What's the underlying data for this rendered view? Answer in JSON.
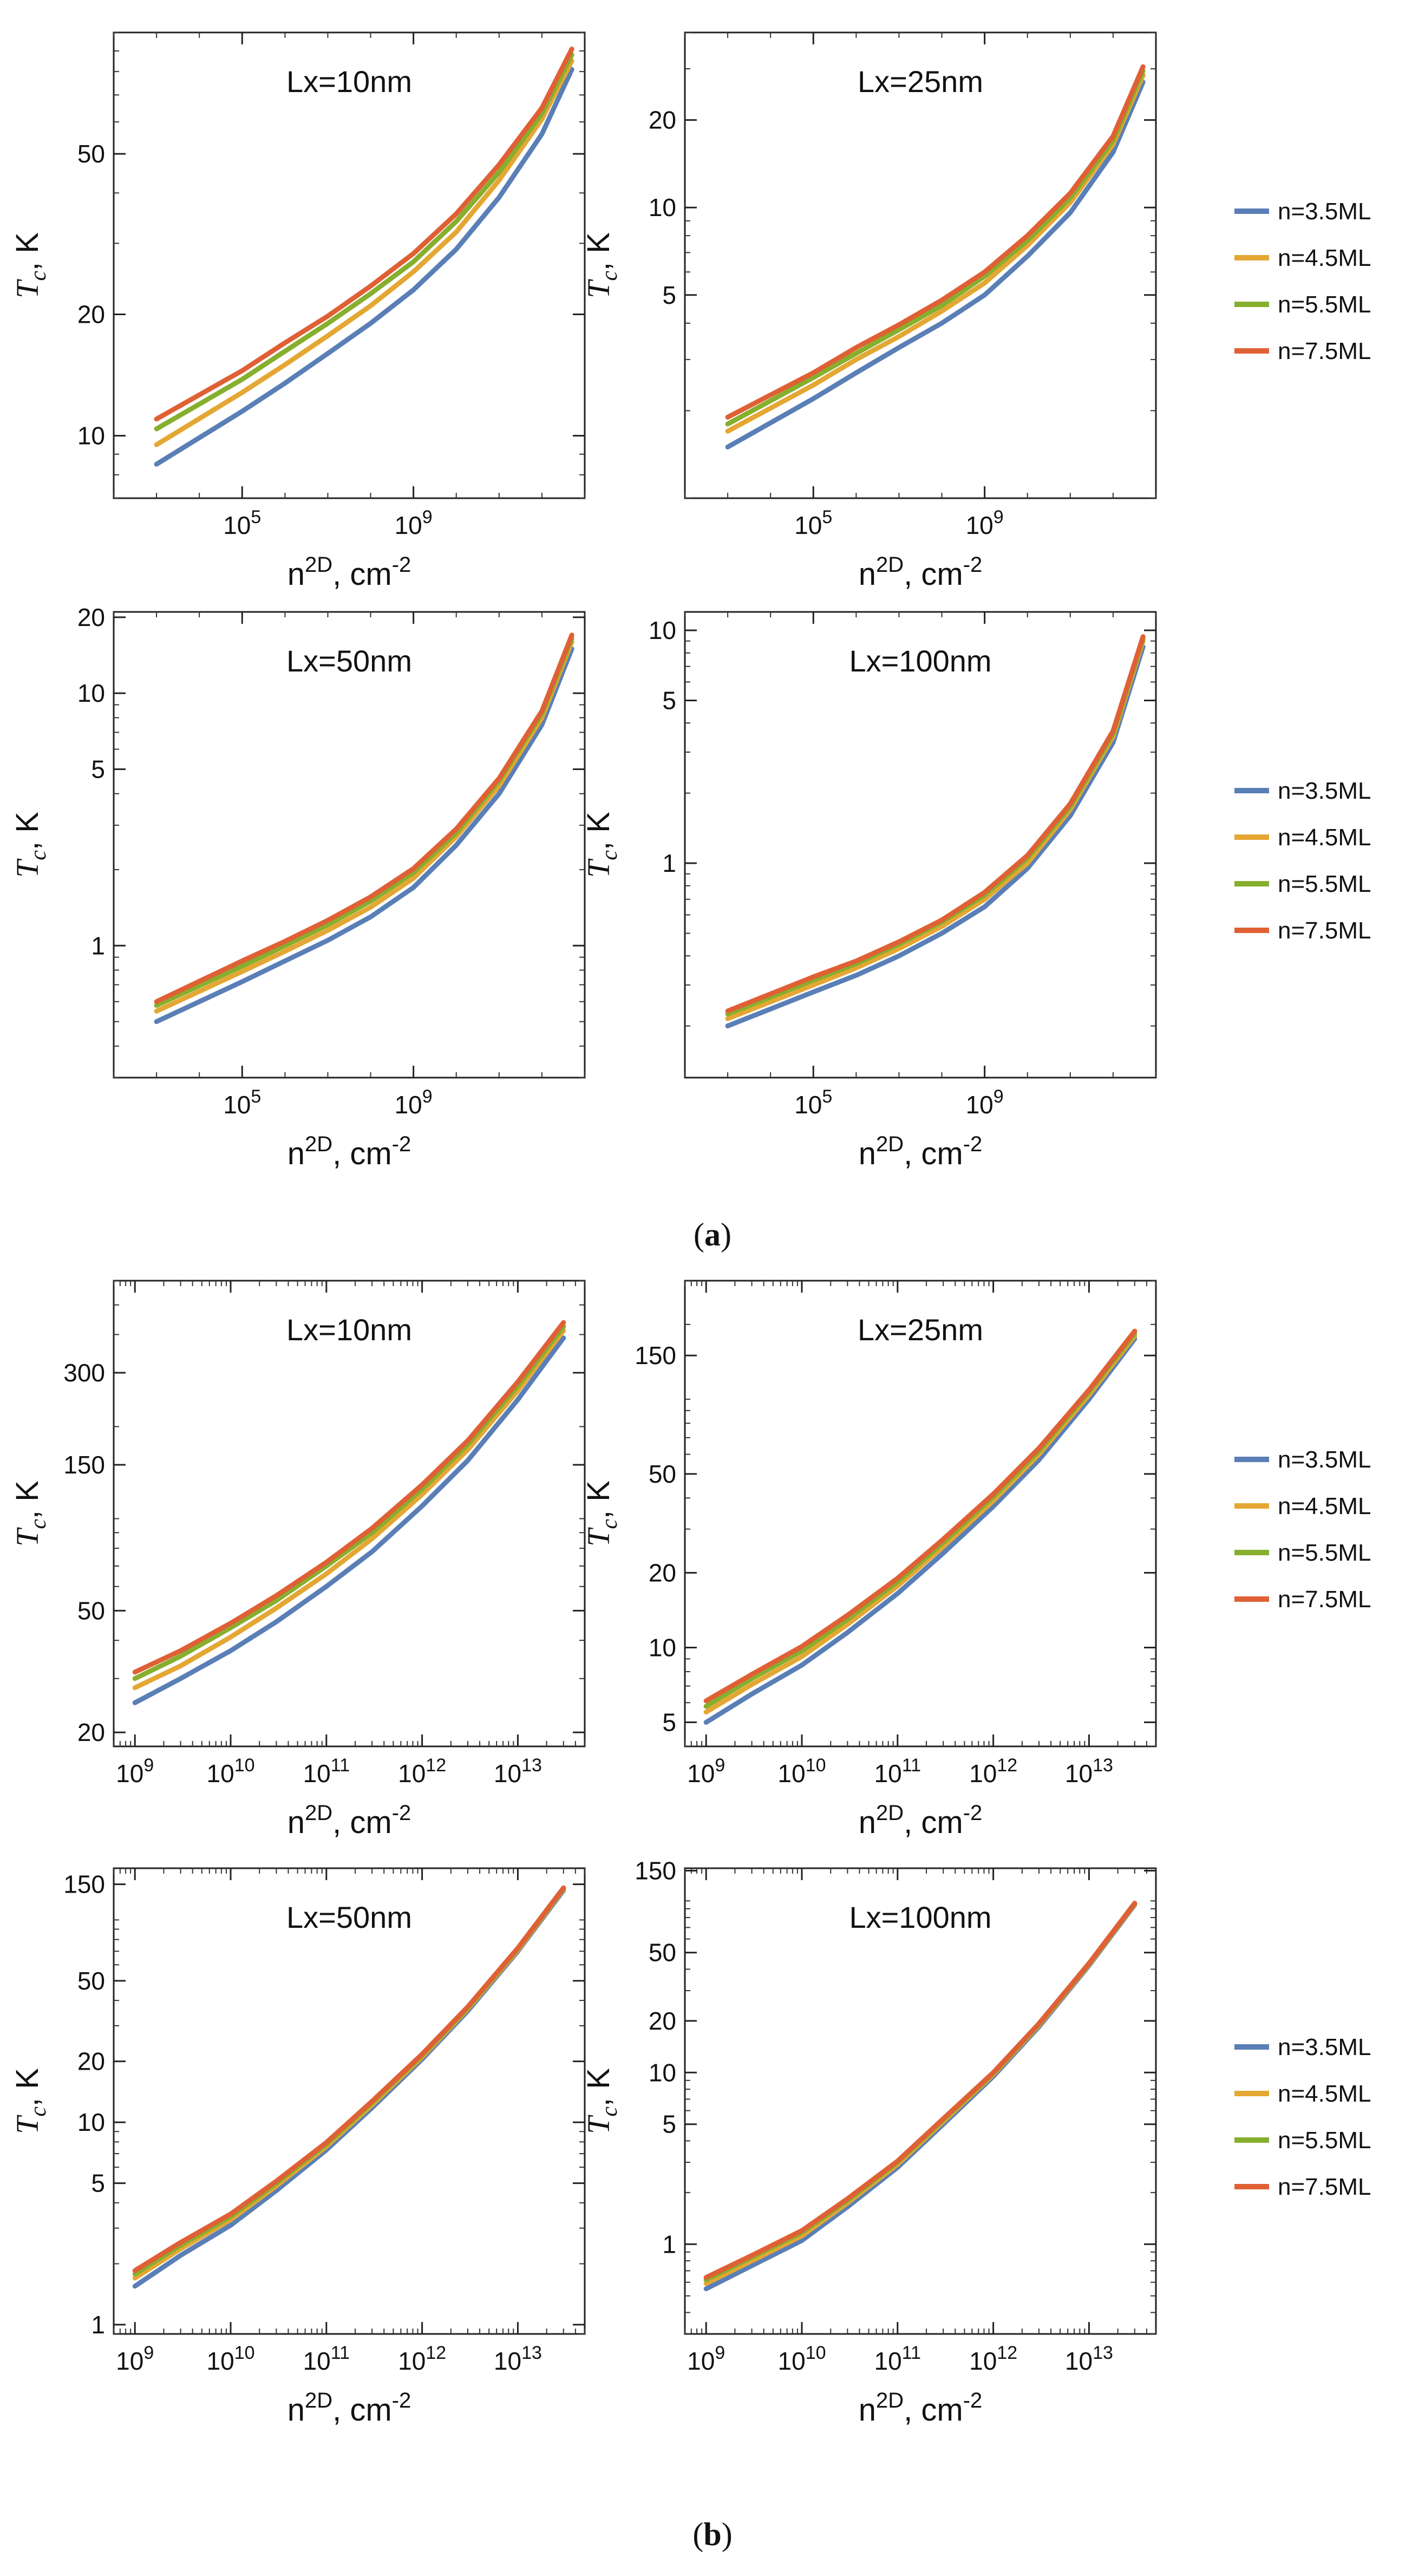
{
  "colors": {
    "n=3.5ML": "#5A7FB6",
    "n=4.5ML": "#E4A733",
    "n=5.5ML": "#86AF2D",
    "n=7.5ML": "#E06035"
  },
  "legend": [
    "n=3.5ML",
    "n=4.5ML",
    "n=5.5ML",
    "n=7.5ML"
  ],
  "captions": [
    "(a)",
    "(b)"
  ],
  "chart_data": [
    {
      "type": "line",
      "group": "a",
      "title": "Lx=10nm",
      "xlabel": "n^2D, cm^-2",
      "ylabel": "T_c, K",
      "xscale": "log",
      "yscale": "log",
      "xlim": [
        100,
        10000000000000.0
      ],
      "ylim": [
        7,
        100
      ],
      "xticks": [
        {
          "v": 100000.0,
          "label": "10^5"
        },
        {
          "v": 1000000000.0,
          "label": "10^9"
        }
      ],
      "yticks": [
        {
          "v": 10,
          "label": "10"
        },
        {
          "v": 20,
          "label": "20"
        },
        {
          "v": 50,
          "label": "50"
        }
      ],
      "x": [
        1000.0,
        100000.0,
        1000000.0,
        10000000.0,
        100000000.0,
        1000000000.0,
        10000000000.0,
        100000000000.0,
        1000000000000.0,
        5000000000000.0
      ],
      "series": [
        {
          "name": "n=3.5ML",
          "values": [
            8.5,
            11.5,
            13.5,
            16.0,
            19.0,
            23.0,
            29.0,
            39.0,
            56.0,
            81.0
          ]
        },
        {
          "name": "n=4.5ML",
          "values": [
            9.5,
            12.8,
            15.0,
            17.7,
            21.0,
            25.5,
            32.0,
            43.0,
            61.0,
            85.0
          ]
        },
        {
          "name": "n=5.5ML",
          "values": [
            10.4,
            13.8,
            16.2,
            19.0,
            22.5,
            27.0,
            34.0,
            45.0,
            63.0,
            88.0
          ]
        },
        {
          "name": "n=7.5ML",
          "values": [
            11.0,
            14.5,
            17.0,
            19.8,
            23.5,
            28.3,
            35.5,
            47.0,
            65.0,
            91.0
          ]
        }
      ]
    },
    {
      "type": "line",
      "group": "a",
      "title": "Lx=25nm",
      "xlabel": "n^2D, cm^-2",
      "ylabel": "T_c, K",
      "xscale": "log",
      "yscale": "log",
      "xlim": [
        100,
        10000000000000.0
      ],
      "ylim": [
        1,
        40
      ],
      "xticks": [
        {
          "v": 100000.0,
          "label": "10^5"
        },
        {
          "v": 1000000000.0,
          "label": "10^9"
        }
      ],
      "yticks": [
        {
          "v": 5,
          "label": "5"
        },
        {
          "v": 10,
          "label": "10"
        },
        {
          "v": 20,
          "label": "20"
        }
      ],
      "x": [
        1000.0,
        100000.0,
        1000000.0,
        10000000.0,
        100000000.0,
        1000000000.0,
        10000000000.0,
        100000000000.0,
        1000000000000.0,
        5000000000000.0
      ],
      "series": [
        {
          "name": "n=3.5ML",
          "values": [
            1.5,
            2.2,
            2.7,
            3.3,
            4.0,
            5.0,
            6.8,
            9.6,
            15.5,
            27.0
          ]
        },
        {
          "name": "n=4.5ML",
          "values": [
            1.7,
            2.45,
            3.0,
            3.6,
            4.4,
            5.5,
            7.4,
            10.4,
            16.5,
            28.5
          ]
        },
        {
          "name": "n=5.5ML",
          "values": [
            1.8,
            2.6,
            3.15,
            3.8,
            4.6,
            5.8,
            7.7,
            10.8,
            17.0,
            29.5
          ]
        },
        {
          "name": "n=7.5ML",
          "values": [
            1.9,
            2.7,
            3.3,
            3.95,
            4.8,
            6.0,
            8.0,
            11.2,
            17.6,
            30.5
          ]
        }
      ]
    },
    {
      "type": "line",
      "group": "a",
      "title": "Lx=50nm",
      "xlabel": "n^2D, cm^-2",
      "ylabel": "T_c, K",
      "xscale": "log",
      "yscale": "log",
      "xlim": [
        100,
        10000000000000.0
      ],
      "ylim": [
        0.3,
        21
      ],
      "xticks": [
        {
          "v": 100000.0,
          "label": "10^5"
        },
        {
          "v": 1000000000.0,
          "label": "10^9"
        }
      ],
      "yticks": [
        {
          "v": 1,
          "label": "1"
        },
        {
          "v": 5,
          "label": "5"
        },
        {
          "v": 10,
          "label": "10"
        },
        {
          "v": 20,
          "label": "20"
        }
      ],
      "x": [
        1000.0,
        100000.0,
        1000000.0,
        10000000.0,
        100000000.0,
        1000000000.0,
        10000000000.0,
        100000000000.0,
        1000000000000.0,
        5000000000000.0
      ],
      "series": [
        {
          "name": "n=3.5ML",
          "values": [
            0.5,
            0.72,
            0.87,
            1.05,
            1.3,
            1.7,
            2.5,
            4.0,
            7.5,
            15.0
          ]
        },
        {
          "name": "n=4.5ML",
          "values": [
            0.55,
            0.79,
            0.95,
            1.15,
            1.42,
            1.85,
            2.7,
            4.3,
            8.0,
            16.0
          ]
        },
        {
          "name": "n=5.5ML",
          "values": [
            0.58,
            0.83,
            1.0,
            1.21,
            1.5,
            1.95,
            2.8,
            4.5,
            8.3,
            16.5
          ]
        },
        {
          "name": "n=7.5ML",
          "values": [
            0.6,
            0.87,
            1.04,
            1.26,
            1.56,
            2.02,
            2.9,
            4.6,
            8.5,
            17.0
          ]
        }
      ]
    },
    {
      "type": "line",
      "group": "a",
      "title": "Lx=100nm",
      "xlabel": "n^2D, cm^-2",
      "ylabel": "T_c, K",
      "xscale": "log",
      "yscale": "log",
      "xlim": [
        100,
        10000000000000.0
      ],
      "ylim": [
        0.12,
        12
      ],
      "xticks": [
        {
          "v": 100000.0,
          "label": "10^5"
        },
        {
          "v": 1000000000.0,
          "label": "10^9"
        }
      ],
      "yticks": [
        {
          "v": 1,
          "label": "1"
        },
        {
          "v": 5,
          "label": "5"
        },
        {
          "v": 10,
          "label": "10"
        }
      ],
      "x": [
        1000.0,
        100000.0,
        1000000.0,
        10000000.0,
        100000000.0,
        1000000000.0,
        10000000000.0,
        100000000000.0,
        1000000000000.0,
        5000000000000.0
      ],
      "series": [
        {
          "name": "n=3.5ML",
          "values": [
            0.2,
            0.28,
            0.33,
            0.4,
            0.5,
            0.65,
            0.95,
            1.6,
            3.3,
            8.5
          ]
        },
        {
          "name": "n=4.5ML",
          "values": [
            0.215,
            0.3,
            0.355,
            0.43,
            0.535,
            0.7,
            1.0,
            1.7,
            3.5,
            9.0
          ]
        },
        {
          "name": "n=5.5ML",
          "values": [
            0.225,
            0.315,
            0.37,
            0.45,
            0.56,
            0.73,
            1.05,
            1.75,
            3.6,
            9.2
          ]
        },
        {
          "name": "n=7.5ML",
          "values": [
            0.232,
            0.325,
            0.38,
            0.46,
            0.57,
            0.75,
            1.08,
            1.8,
            3.7,
            9.4
          ]
        }
      ]
    },
    {
      "type": "line",
      "group": "b",
      "title": "Lx=10nm",
      "xlabel": "n^2D, cm^-2",
      "ylabel": "T_c, K",
      "xscale": "log",
      "yscale": "log",
      "xlim": [
        600000000.0,
        50000000000000.0
      ],
      "ylim": [
        18,
        600
      ],
      "xticks": [
        {
          "v": 1000000000.0,
          "label": "10^9"
        },
        {
          "v": 10000000000.0,
          "label": "10^10"
        },
        {
          "v": 100000000000.0,
          "label": "10^11"
        },
        {
          "v": 1000000000000.0,
          "label": "10^12"
        },
        {
          "v": 10000000000000.0,
          "label": "10^13"
        }
      ],
      "yticks": [
        {
          "v": 20,
          "label": "20"
        },
        {
          "v": 50,
          "label": "50"
        },
        {
          "v": 150,
          "label": "150"
        },
        {
          "v": 300,
          "label": "300"
        }
      ],
      "x": [
        1000000000.0,
        3000000000.0,
        10000000000.0,
        30000000000.0,
        100000000000.0,
        300000000000.0,
        1000000000000.0,
        3000000000000.0,
        10000000000000.0,
        30000000000000.0
      ],
      "series": [
        {
          "name": "n=3.5ML",
          "values": [
            25,
            30,
            37,
            46,
            60,
            78,
            110,
            155,
            245,
            390
          ]
        },
        {
          "name": "n=4.5ML",
          "values": [
            28,
            33,
            41,
            51,
            66,
            86,
            120,
            168,
            262,
            412
          ]
        },
        {
          "name": "n=5.5ML",
          "values": [
            30,
            35.5,
            44,
            54,
            70,
            90,
            125,
            175,
            272,
            425
          ]
        },
        {
          "name": "n=7.5ML",
          "values": [
            31.5,
            37,
            45.5,
            56,
            72,
            93,
            129,
            180,
            280,
            438
          ]
        }
      ]
    },
    {
      "type": "line",
      "group": "b",
      "title": "Lx=25nm",
      "xlabel": "n^2D, cm^-2",
      "ylabel": "T_c, K",
      "xscale": "log",
      "yscale": "log",
      "xlim": [
        600000000.0,
        50000000000000.0
      ],
      "ylim": [
        4,
        300
      ],
      "xticks": [
        {
          "v": 1000000000.0,
          "label": "10^9"
        },
        {
          "v": 10000000000.0,
          "label": "10^10"
        },
        {
          "v": 100000000000.0,
          "label": "10^11"
        },
        {
          "v": 1000000000000.0,
          "label": "10^12"
        },
        {
          "v": 10000000000000.0,
          "label": "10^13"
        }
      ],
      "yticks": [
        {
          "v": 5,
          "label": "5"
        },
        {
          "v": 10,
          "label": "10"
        },
        {
          "v": 20,
          "label": "20"
        },
        {
          "v": 50,
          "label": "50"
        },
        {
          "v": 150,
          "label": "150"
        }
      ],
      "x": [
        1000000000.0,
        3000000000.0,
        10000000000.0,
        30000000000.0,
        100000000000.0,
        300000000000.0,
        1000000000000.0,
        3000000000000.0,
        10000000000000.0,
        30000000000000.0
      ],
      "series": [
        {
          "name": "n=3.5ML",
          "values": [
            5,
            6.5,
            8.5,
            11.5,
            16.5,
            24,
            37,
            57,
            100,
            175
          ]
        },
        {
          "name": "n=4.5ML",
          "values": [
            5.5,
            7.1,
            9.2,
            12.4,
            17.7,
            25.5,
            39,
            60,
            104,
            180
          ]
        },
        {
          "name": "n=5.5ML",
          "values": [
            5.8,
            7.5,
            9.7,
            13,
            18.4,
            26.5,
            40.5,
            62,
            107,
            184
          ]
        },
        {
          "name": "n=7.5ML",
          "values": [
            6.1,
            7.8,
            10.1,
            13.5,
            19,
            27.3,
            41.5,
            63.5,
            109,
            188
          ]
        }
      ]
    },
    {
      "type": "line",
      "group": "b",
      "title": "Lx=50nm",
      "xlabel": "n^2D, cm^-2",
      "ylabel": "T_c, K",
      "xscale": "log",
      "yscale": "log",
      "xlim": [
        600000000.0,
        50000000000000.0
      ],
      "ylim": [
        0.9,
        180
      ],
      "xticks": [
        {
          "v": 1000000000.0,
          "label": "10^9"
        },
        {
          "v": 10000000000.0,
          "label": "10^10"
        },
        {
          "v": 100000000000.0,
          "label": "10^11"
        },
        {
          "v": 1000000000000.0,
          "label": "10^12"
        },
        {
          "v": 10000000000000.0,
          "label": "10^13"
        }
      ],
      "yticks": [
        {
          "v": 1,
          "label": "1"
        },
        {
          "v": 5,
          "label": "5"
        },
        {
          "v": 10,
          "label": "10"
        },
        {
          "v": 20,
          "label": "20"
        },
        {
          "v": 50,
          "label": "50"
        },
        {
          "v": 150,
          "label": "150"
        }
      ],
      "x": [
        1000000000.0,
        3000000000.0,
        10000000000.0,
        30000000000.0,
        100000000000.0,
        300000000000.0,
        1000000000000.0,
        3000000000000.0,
        10000000000000.0,
        30000000000000.0
      ],
      "series": [
        {
          "name": "n=3.5ML",
          "values": [
            1.55,
            2.2,
            3.1,
            4.6,
            7.3,
            11.8,
            20.5,
            35.5,
            70,
            140
          ]
        },
        {
          "name": "n=4.5ML",
          "values": [
            1.7,
            2.37,
            3.3,
            4.85,
            7.6,
            12.2,
            21,
            36.3,
            71,
            142
          ]
        },
        {
          "name": "n=5.5ML",
          "values": [
            1.78,
            2.47,
            3.42,
            5.0,
            7.8,
            12.5,
            21.4,
            36.8,
            72,
            143
          ]
        },
        {
          "name": "n=7.5ML",
          "values": [
            1.85,
            2.55,
            3.52,
            5.12,
            7.95,
            12.7,
            21.7,
            37.2,
            72.5,
            144
          ]
        }
      ]
    },
    {
      "type": "line",
      "group": "b",
      "title": "Lx=100nm",
      "xlabel": "n^2D, cm^-2",
      "ylabel": "T_c, K",
      "xscale": "log",
      "yscale": "log",
      "xlim": [
        600000000.0,
        50000000000000.0
      ],
      "ylim": [
        0.3,
        155
      ],
      "xticks": [
        {
          "v": 1000000000.0,
          "label": "10^9"
        },
        {
          "v": 10000000000.0,
          "label": "10^10"
        },
        {
          "v": 100000000000.0,
          "label": "10^11"
        },
        {
          "v": 1000000000000.0,
          "label": "10^12"
        },
        {
          "v": 10000000000000.0,
          "label": "10^13"
        }
      ],
      "yticks": [
        {
          "v": 1,
          "label": "1"
        },
        {
          "v": 5,
          "label": "5"
        },
        {
          "v": 10,
          "label": "10"
        },
        {
          "v": 20,
          "label": "20"
        },
        {
          "v": 50,
          "label": "50"
        },
        {
          "v": 150,
          "label": "150"
        }
      ],
      "x": [
        1000000000.0,
        3000000000.0,
        10000000000.0,
        30000000000.0,
        100000000000.0,
        300000000000.0,
        1000000000000.0,
        3000000000000.0,
        10000000000000.0,
        30000000000000.0
      ],
      "series": [
        {
          "name": "n=3.5ML",
          "values": [
            0.55,
            0.75,
            1.05,
            1.65,
            2.8,
            5.0,
            9.5,
            18.5,
            42,
            95
          ]
        },
        {
          "name": "n=4.5ML",
          "values": [
            0.59,
            0.8,
            1.12,
            1.74,
            2.92,
            5.18,
            9.75,
            18.9,
            42.6,
            96
          ]
        },
        {
          "name": "n=5.5ML",
          "values": [
            0.62,
            0.84,
            1.17,
            1.8,
            3.0,
            5.3,
            9.9,
            19.1,
            43,
            96.5
          ]
        },
        {
          "name": "n=7.5ML",
          "values": [
            0.64,
            0.86,
            1.2,
            1.84,
            3.05,
            5.38,
            10.0,
            19.3,
            43.3,
            97
          ]
        }
      ]
    }
  ]
}
